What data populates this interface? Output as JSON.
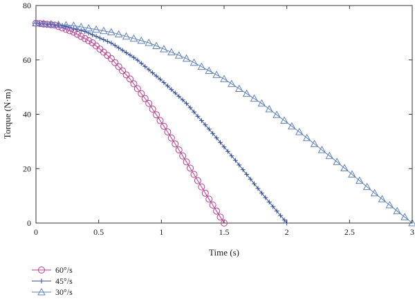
{
  "chart_data": {
    "type": "line",
    "title": "",
    "xlabel": "Time (s)",
    "ylabel": "Torque (N·m)",
    "xlim": [
      0,
      3
    ],
    "ylim": [
      0,
      80
    ],
    "xticks": [
      0,
      0.5,
      1,
      1.5,
      2,
      2.5,
      3
    ],
    "xtick_labels": [
      "0",
      "0.5",
      "1",
      "1.5",
      "2",
      "2.5",
      "3"
    ],
    "yticks": [
      0,
      20,
      40,
      60,
      80
    ],
    "ytick_labels": [
      "0",
      "20",
      "40",
      "60",
      "80"
    ],
    "grid": false,
    "legend_position": "bottom-left",
    "series": [
      {
        "name": "60°/s",
        "marker": "circle",
        "color": "#c0398f",
        "end_x": 1.5,
        "step": 0.03,
        "x": [
          0,
          0.15,
          0.3,
          0.45,
          0.6,
          0.75,
          0.9,
          1.05,
          1.2,
          1.35,
          1.5
        ],
        "y": [
          73.5,
          72.8,
          70.2,
          66.3,
          60.5,
          53.0,
          44.0,
          33.5,
          22.5,
          11.0,
          0
        ]
      },
      {
        "name": "45°/s",
        "marker": "plus",
        "color": "#2b4aa0",
        "end_x": 2.0,
        "step": 0.03,
        "x": [
          0,
          0.2,
          0.4,
          0.6,
          0.8,
          1.0,
          1.2,
          1.4,
          1.6,
          1.8,
          2.0
        ],
        "y": [
          73.5,
          72.8,
          70.3,
          66.2,
          60.3,
          52.5,
          44.0,
          33.5,
          22.5,
          11.0,
          0
        ]
      },
      {
        "name": "30°/s",
        "marker": "triangle",
        "color": "#5b80c9",
        "end_x": 3.0,
        "step": 0.06,
        "x": [
          0,
          0.3,
          0.6,
          0.9,
          1.2,
          1.5,
          1.8,
          2.1,
          2.4,
          2.7,
          3.0
        ],
        "y": [
          73.5,
          72.6,
          70.2,
          66.3,
          60.5,
          53.0,
          44.0,
          33.5,
          22.5,
          11.0,
          0
        ]
      }
    ]
  }
}
